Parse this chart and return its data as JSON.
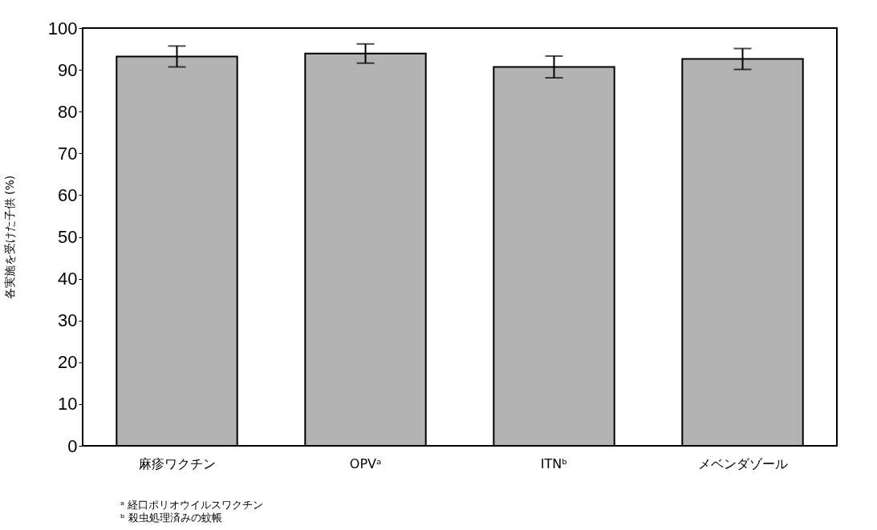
{
  "chart_data": {
    "type": "bar",
    "ylabel": "各実施を受けた子供 (%)",
    "categories": [
      "麻疹ワクチン",
      "OPVᵃ",
      "ITNᵇ",
      "メベンダゾール"
    ],
    "values": [
      93.2,
      93.9,
      90.7,
      92.6
    ],
    "errors": [
      2.5,
      2.3,
      2.6,
      2.5
    ],
    "color": "#b3b3b3",
    "ylim": [
      0,
      100
    ],
    "yticks": [
      0,
      10,
      20,
      30,
      40,
      50,
      60,
      70,
      80,
      90,
      100
    ],
    "grid": false,
    "annotations": [
      "ᵃ 経口ポリオウイルスワクチン",
      "ᵇ 殺虫処理済みの蚊帳"
    ]
  }
}
